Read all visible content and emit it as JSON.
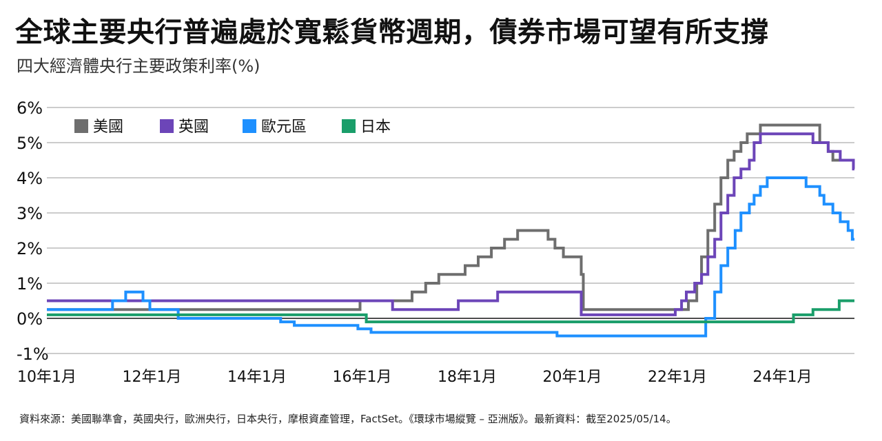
{
  "title": "全球主要央行普遍處於寬鬆貨幣週期，債券市場可望有所支撐",
  "subtitle": "四大經濟體央行主要政策利率(%)",
  "source": "資料來源：美國聯準會，英國央行，歐洲央行，日本央行，摩根資產管理，FactSet。《環球市場縱覽 – 亞洲版》。最新資料：截至2025/05/14。",
  "chart_data": {
    "type": "line",
    "step": true,
    "ylim": [
      -1,
      6
    ],
    "xlim": [
      2010.0,
      2025.37
    ],
    "y_ticks": [
      {
        "value": 6,
        "label": "6%"
      },
      {
        "value": 5,
        "label": "5%"
      },
      {
        "value": 4,
        "label": "4%"
      },
      {
        "value": 3,
        "label": "3%"
      },
      {
        "value": 2,
        "label": "2%"
      },
      {
        "value": 1,
        "label": "1%"
      },
      {
        "value": 0,
        "label": "0%"
      },
      {
        "value": -1,
        "label": "-1%"
      }
    ],
    "x_ticks": [
      {
        "value": 2010,
        "label": "10年1月"
      },
      {
        "value": 2012,
        "label": "12年1月"
      },
      {
        "value": 2014,
        "label": "14年1月"
      },
      {
        "value": 2016,
        "label": "16年1月"
      },
      {
        "value": 2018,
        "label": "18年1月"
      },
      {
        "value": 2020,
        "label": "20年1月"
      },
      {
        "value": 2022,
        "label": "22年1月"
      },
      {
        "value": 2024,
        "label": "24年1月"
      }
    ],
    "grid": true,
    "legend_position": "top-left",
    "series": [
      {
        "name": "美國",
        "color": "#6e6e6e",
        "points": [
          [
            2010.0,
            0.25
          ],
          [
            2015.96,
            0.25
          ],
          [
            2015.96,
            0.5
          ],
          [
            2016.95,
            0.5
          ],
          [
            2016.95,
            0.75
          ],
          [
            2017.21,
            0.75
          ],
          [
            2017.21,
            1.0
          ],
          [
            2017.46,
            1.0
          ],
          [
            2017.46,
            1.25
          ],
          [
            2017.96,
            1.25
          ],
          [
            2017.96,
            1.5
          ],
          [
            2018.21,
            1.5
          ],
          [
            2018.21,
            1.75
          ],
          [
            2018.46,
            1.75
          ],
          [
            2018.46,
            2.0
          ],
          [
            2018.71,
            2.0
          ],
          [
            2018.71,
            2.25
          ],
          [
            2018.96,
            2.25
          ],
          [
            2018.96,
            2.5
          ],
          [
            2019.54,
            2.5
          ],
          [
            2019.54,
            2.25
          ],
          [
            2019.67,
            2.25
          ],
          [
            2019.67,
            2.0
          ],
          [
            2019.83,
            2.0
          ],
          [
            2019.83,
            1.75
          ],
          [
            2020.17,
            1.75
          ],
          [
            2020.17,
            1.25
          ],
          [
            2020.21,
            1.25
          ],
          [
            2020.21,
            0.25
          ],
          [
            2022.21,
            0.25
          ],
          [
            2022.21,
            0.5
          ],
          [
            2022.37,
            0.5
          ],
          [
            2022.37,
            1.0
          ],
          [
            2022.46,
            1.0
          ],
          [
            2022.46,
            1.75
          ],
          [
            2022.58,
            1.75
          ],
          [
            2022.58,
            2.5
          ],
          [
            2022.71,
            2.5
          ],
          [
            2022.71,
            3.25
          ],
          [
            2022.83,
            3.25
          ],
          [
            2022.83,
            4.0
          ],
          [
            2022.96,
            4.0
          ],
          [
            2022.96,
            4.5
          ],
          [
            2023.08,
            4.5
          ],
          [
            2023.08,
            4.75
          ],
          [
            2023.21,
            4.75
          ],
          [
            2023.21,
            5.0
          ],
          [
            2023.33,
            5.0
          ],
          [
            2023.33,
            5.25
          ],
          [
            2023.58,
            5.25
          ],
          [
            2023.58,
            5.5
          ],
          [
            2024.71,
            5.5
          ],
          [
            2024.71,
            5.0
          ],
          [
            2024.87,
            5.0
          ],
          [
            2024.87,
            4.75
          ],
          [
            2024.96,
            4.75
          ],
          [
            2024.96,
            4.5
          ],
          [
            2025.37,
            4.5
          ]
        ]
      },
      {
        "name": "英國",
        "color": "#6c45b8",
        "points": [
          [
            2010.0,
            0.5
          ],
          [
            2016.58,
            0.5
          ],
          [
            2016.58,
            0.25
          ],
          [
            2017.83,
            0.25
          ],
          [
            2017.83,
            0.5
          ],
          [
            2018.58,
            0.5
          ],
          [
            2018.58,
            0.75
          ],
          [
            2020.17,
            0.75
          ],
          [
            2020.17,
            0.1
          ],
          [
            2021.96,
            0.1
          ],
          [
            2021.96,
            0.25
          ],
          [
            2022.08,
            0.25
          ],
          [
            2022.08,
            0.5
          ],
          [
            2022.17,
            0.5
          ],
          [
            2022.17,
            0.75
          ],
          [
            2022.33,
            0.75
          ],
          [
            2022.33,
            1.0
          ],
          [
            2022.46,
            1.0
          ],
          [
            2022.46,
            1.25
          ],
          [
            2022.58,
            1.25
          ],
          [
            2022.58,
            1.75
          ],
          [
            2022.71,
            1.75
          ],
          [
            2022.71,
            2.25
          ],
          [
            2022.83,
            2.25
          ],
          [
            2022.83,
            3.0
          ],
          [
            2022.96,
            3.0
          ],
          [
            2022.96,
            3.5
          ],
          [
            2023.08,
            3.5
          ],
          [
            2023.08,
            4.0
          ],
          [
            2023.21,
            4.0
          ],
          [
            2023.21,
            4.25
          ],
          [
            2023.37,
            4.25
          ],
          [
            2023.37,
            4.5
          ],
          [
            2023.46,
            4.5
          ],
          [
            2023.46,
            5.0
          ],
          [
            2023.58,
            5.0
          ],
          [
            2023.58,
            5.25
          ],
          [
            2024.58,
            5.25
          ],
          [
            2024.58,
            5.0
          ],
          [
            2024.87,
            5.0
          ],
          [
            2024.87,
            4.75
          ],
          [
            2025.1,
            4.75
          ],
          [
            2025.1,
            4.5
          ],
          [
            2025.35,
            4.5
          ],
          [
            2025.35,
            4.25
          ],
          [
            2025.37,
            4.25
          ]
        ]
      },
      {
        "name": "歐元區",
        "color": "#1e90ff",
        "points": [
          [
            2010.0,
            0.25
          ],
          [
            2011.25,
            0.25
          ],
          [
            2011.25,
            0.5
          ],
          [
            2011.5,
            0.5
          ],
          [
            2011.5,
            0.75
          ],
          [
            2011.83,
            0.75
          ],
          [
            2011.83,
            0.5
          ],
          [
            2011.96,
            0.5
          ],
          [
            2011.96,
            0.25
          ],
          [
            2012.5,
            0.25
          ],
          [
            2012.5,
            0.0
          ],
          [
            2014.0,
            0.0
          ],
          [
            2014.0,
            0.0
          ],
          [
            2014.45,
            0.0
          ],
          [
            2014.45,
            -0.1
          ],
          [
            2014.71,
            -0.1
          ],
          [
            2014.71,
            -0.2
          ],
          [
            2015.92,
            -0.2
          ],
          [
            2015.92,
            -0.3
          ],
          [
            2016.17,
            -0.3
          ],
          [
            2016.17,
            -0.4
          ],
          [
            2019.71,
            -0.4
          ],
          [
            2019.71,
            -0.5
          ],
          [
            2022.54,
            -0.5
          ],
          [
            2022.54,
            0.0
          ],
          [
            2022.71,
            0.0
          ],
          [
            2022.71,
            0.75
          ],
          [
            2022.83,
            0.75
          ],
          [
            2022.83,
            1.5
          ],
          [
            2022.96,
            1.5
          ],
          [
            2022.96,
            2.0
          ],
          [
            2023.1,
            2.0
          ],
          [
            2023.1,
            2.5
          ],
          [
            2023.21,
            2.5
          ],
          [
            2023.21,
            3.0
          ],
          [
            2023.37,
            3.0
          ],
          [
            2023.37,
            3.25
          ],
          [
            2023.46,
            3.25
          ],
          [
            2023.46,
            3.5
          ],
          [
            2023.58,
            3.5
          ],
          [
            2023.58,
            3.75
          ],
          [
            2023.71,
            3.75
          ],
          [
            2023.71,
            4.0
          ],
          [
            2024.45,
            4.0
          ],
          [
            2024.45,
            3.75
          ],
          [
            2024.71,
            3.75
          ],
          [
            2024.71,
            3.5
          ],
          [
            2024.79,
            3.5
          ],
          [
            2024.79,
            3.25
          ],
          [
            2024.96,
            3.25
          ],
          [
            2024.96,
            3.0
          ],
          [
            2025.1,
            3.0
          ],
          [
            2025.1,
            2.75
          ],
          [
            2025.25,
            2.75
          ],
          [
            2025.25,
            2.5
          ],
          [
            2025.33,
            2.5
          ],
          [
            2025.33,
            2.25
          ],
          [
            2025.37,
            2.25
          ]
        ]
      },
      {
        "name": "日本",
        "color": "#1a9e6a",
        "points": [
          [
            2010.0,
            0.1
          ],
          [
            2016.08,
            0.1
          ],
          [
            2016.08,
            -0.1
          ],
          [
            2024.21,
            -0.1
          ],
          [
            2024.21,
            0.1
          ],
          [
            2024.58,
            0.1
          ],
          [
            2024.58,
            0.25
          ],
          [
            2025.08,
            0.25
          ],
          [
            2025.08,
            0.5
          ],
          [
            2025.37,
            0.5
          ]
        ]
      }
    ]
  }
}
